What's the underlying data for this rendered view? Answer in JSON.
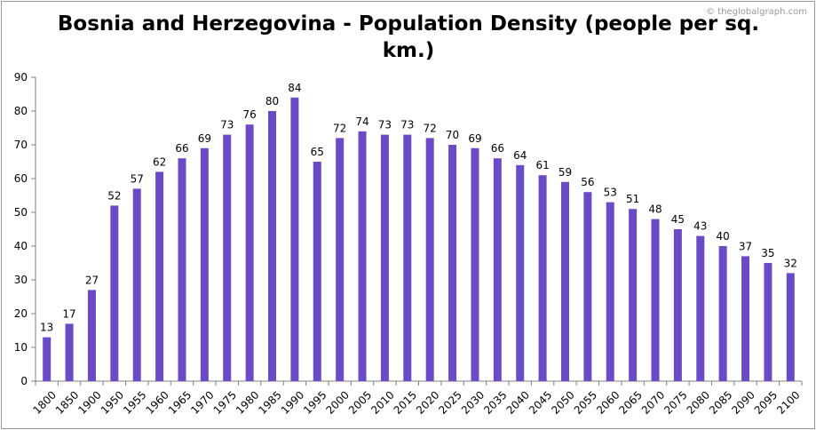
{
  "watermark": "© theglobalgraph.com",
  "colors": {
    "bar": "#6a4ac6",
    "axis": "#808080",
    "text": "#000000"
  },
  "chart_data": {
    "type": "bar",
    "title": "Bosnia and Herzegovina - Population Density (people per sq. km.)",
    "xlabel": "",
    "ylabel": "",
    "ylim": [
      0,
      90
    ],
    "yticks": [
      0,
      10,
      20,
      30,
      40,
      50,
      60,
      70,
      80,
      90
    ],
    "grid": false,
    "categories": [
      "1800",
      "1850",
      "1900",
      "1950",
      "1955",
      "1960",
      "1965",
      "1970",
      "1975",
      "1980",
      "1985",
      "1990",
      "1995",
      "2000",
      "2005",
      "2010",
      "2015",
      "2020",
      "2025",
      "2030",
      "2035",
      "2040",
      "2045",
      "2050",
      "2055",
      "2060",
      "2065",
      "2070",
      "2075",
      "2080",
      "2085",
      "2090",
      "2095",
      "2100"
    ],
    "values": [
      13,
      17,
      27,
      52,
      57,
      62,
      66,
      69,
      73,
      76,
      80,
      84,
      65,
      72,
      74,
      73,
      73,
      72,
      70,
      69,
      66,
      64,
      61,
      59,
      56,
      53,
      51,
      48,
      45,
      43,
      40,
      37,
      35,
      32
    ]
  }
}
